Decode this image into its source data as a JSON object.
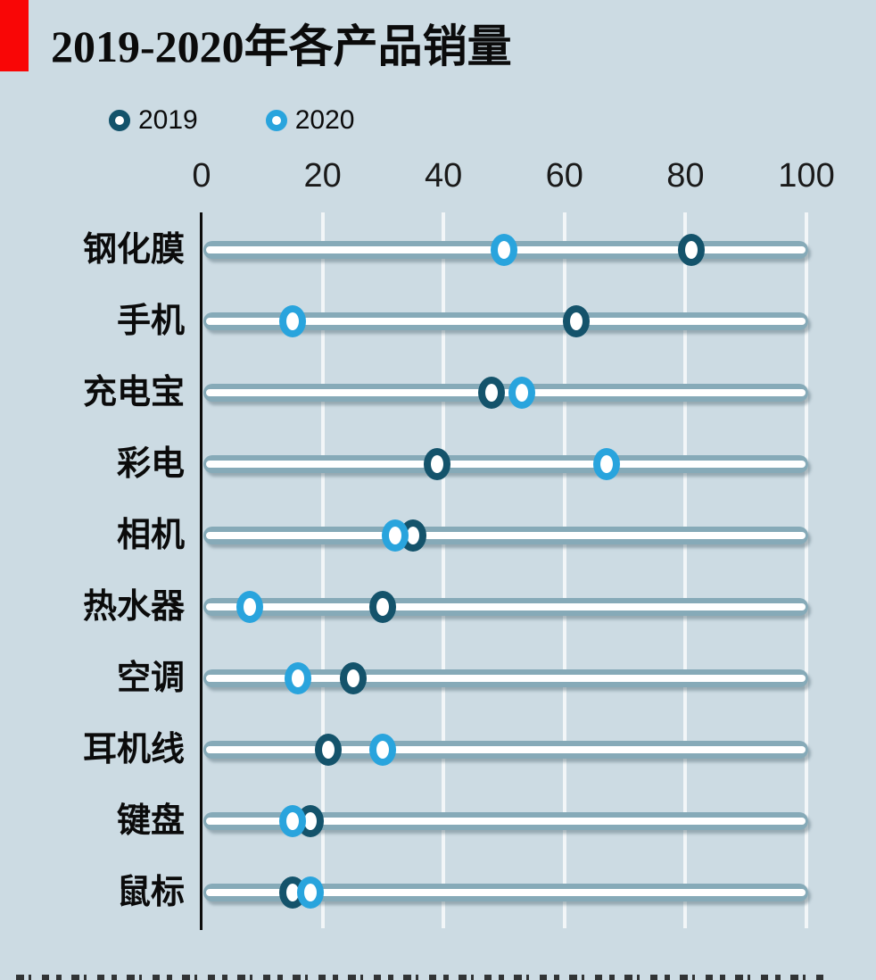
{
  "title": "2019-2020年各产品销量",
  "accent_color": "#f90606",
  "background_color": "#ccdbe3",
  "chart_data": {
    "type": "scatter",
    "subtype": "dot-plot-horizontal",
    "title": "2019-2020年各产品销量",
    "categories": [
      "钢化膜",
      "手机",
      "充电宝",
      "彩电",
      "相机",
      "热水器",
      "空调",
      "耳机线",
      "键盘",
      "鼠标"
    ],
    "series": [
      {
        "name": "2019",
        "color": "#14536b",
        "values": [
          81,
          62,
          48,
          39,
          35,
          30,
          25,
          21,
          18,
          15
        ]
      },
      {
        "name": "2020",
        "color": "#29a4dd",
        "values": [
          50,
          15,
          53,
          67,
          32,
          8,
          16,
          30,
          15,
          18
        ]
      }
    ],
    "xlabel": "",
    "ylabel": "",
    "xlim": [
      0,
      100
    ],
    "xticks": [
      0,
      20,
      40,
      60,
      80,
      100
    ],
    "grid": "vertical-white",
    "legend_position": "top-left",
    "track_color": "#86aab8",
    "track_inner_color": "#ffffff",
    "marker_style": "ring"
  }
}
